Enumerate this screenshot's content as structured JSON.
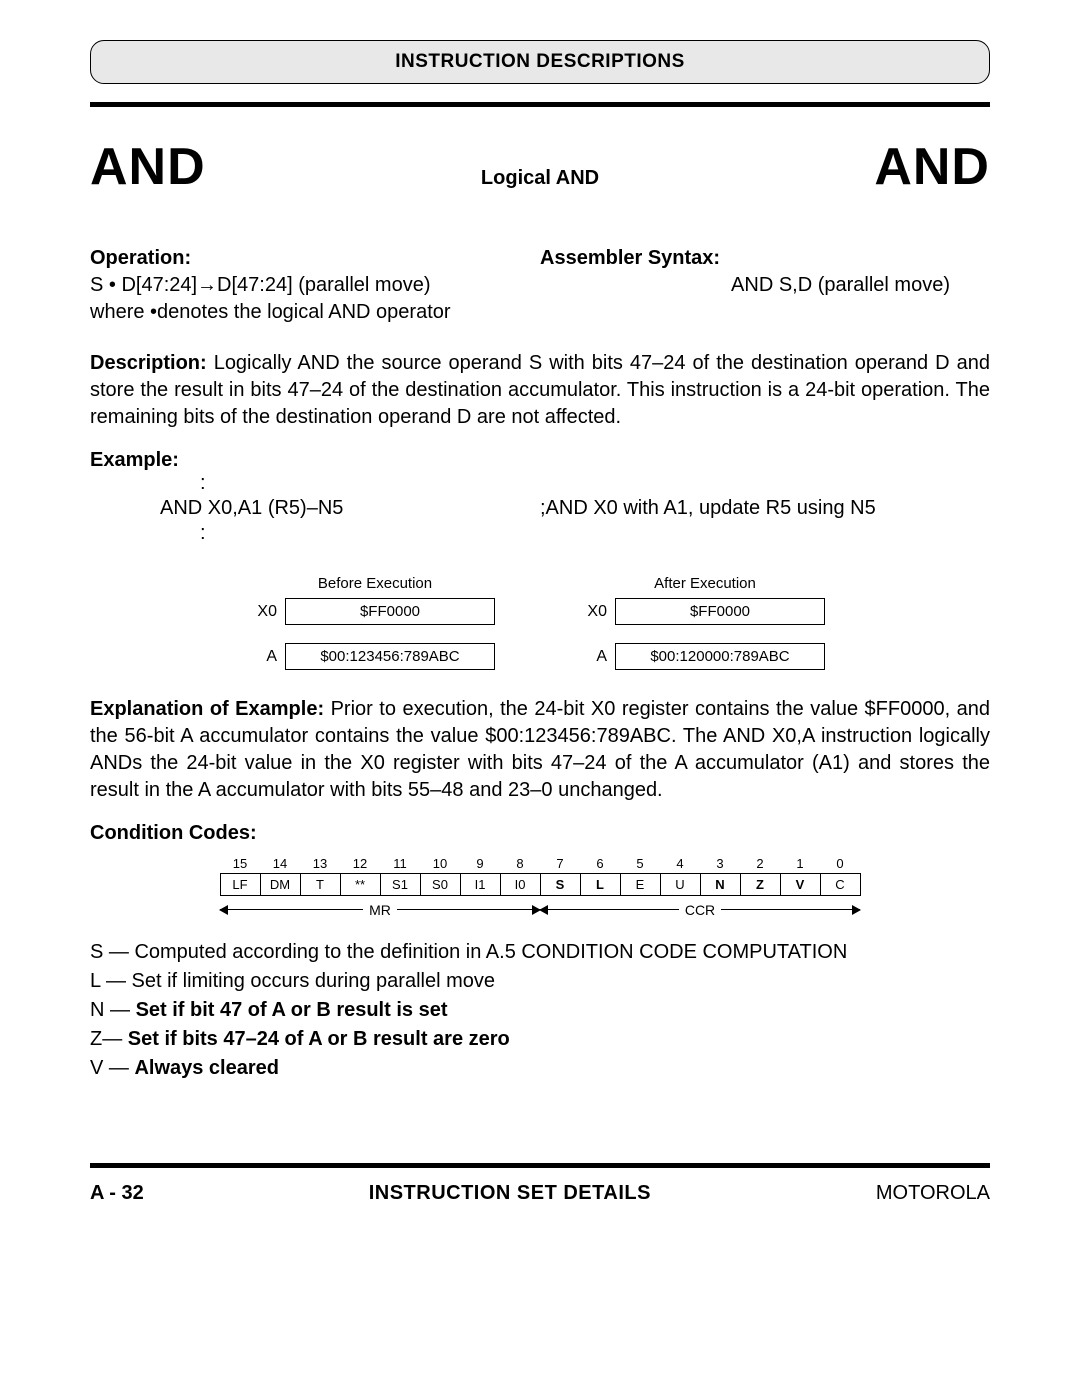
{
  "header": {
    "title": "INSTRUCTION DESCRIPTIONS"
  },
  "title": {
    "mnemonic_left": "AND",
    "subtitle": "Logical AND",
    "mnemonic_right": "AND"
  },
  "operation": {
    "label": "Operation:",
    "line1": "S • D[47:24]→D[47:24] (parallel move)",
    "line2": "where •denotes the logical AND operator"
  },
  "assembler": {
    "label": "Assembler Syntax:",
    "line1": "AND S,D (parallel move)"
  },
  "description": {
    "label": "Description:",
    "text": " Logically AND the source operand S with bits 47–24 of the destination operand D and store the result in bits 47–24 of the destination accumulator. This instruction is a 24-bit operation. The remaining bits of the destination operand D are not affected."
  },
  "example": {
    "label": "Example:",
    "colon": ":",
    "code": "AND X0,A1 (R5)–N5",
    "comment": ";AND X0 with A1, update R5 using N5"
  },
  "registers": {
    "before_label": "Before Execution",
    "after_label": "After Execution",
    "rows": [
      {
        "name": "X0",
        "before": "$FF0000",
        "after": "$FF0000"
      },
      {
        "name": "A",
        "before": "$00:123456:789ABC",
        "after": "$00:120000:789ABC"
      }
    ]
  },
  "explanation": {
    "label": "Explanation of Example:",
    "text": " Prior to execution, the 24-bit X0 register contains the value $FF0000, and the 56-bit A accumulator contains the value $00:123456:789ABC. The AND X0,A instruction logically ANDs the 24-bit value in the X0 register with bits 47–24 of the A accumulator (A1) and stores the result in the A accumulator with bits 55–48 and 23–0 unchanged."
  },
  "condition_codes": {
    "label": "Condition Codes:",
    "bit_numbers": [
      "15",
      "14",
      "13",
      "12",
      "11",
      "10",
      "9",
      "8",
      "7",
      "6",
      "5",
      "4",
      "3",
      "2",
      "1",
      "0"
    ],
    "flags": [
      "LF",
      "DM",
      "T",
      "**",
      "S1",
      "S0",
      "I1",
      "I0",
      "S",
      "L",
      "E",
      "U",
      "N",
      "Z",
      "V",
      "C"
    ],
    "bold_flags": [
      "S",
      "L",
      "N",
      "Z",
      "V"
    ],
    "mr_label": "MR",
    "ccr_label": "CCR",
    "lines": [
      {
        "prefix": "S — ",
        "text": "Computed according to the definition in A.5 CONDITION CODE COMPUTATION",
        "bold": false
      },
      {
        "prefix": "L — ",
        "text": "Set if limiting occurs during parallel move",
        "bold": false
      },
      {
        "prefix": "N — ",
        "text": "Set if bit 47 of A or B result is set",
        "bold": true
      },
      {
        "prefix": "Z— ",
        "text": "Set if bits 47–24 of A or B result are zero",
        "bold": true
      },
      {
        "prefix": "V — ",
        "text": "Always cleared",
        "bold": true
      }
    ]
  },
  "footer": {
    "left": "A - 32",
    "center": "INSTRUCTION SET DETAILS",
    "right": "MOTOROLA"
  }
}
